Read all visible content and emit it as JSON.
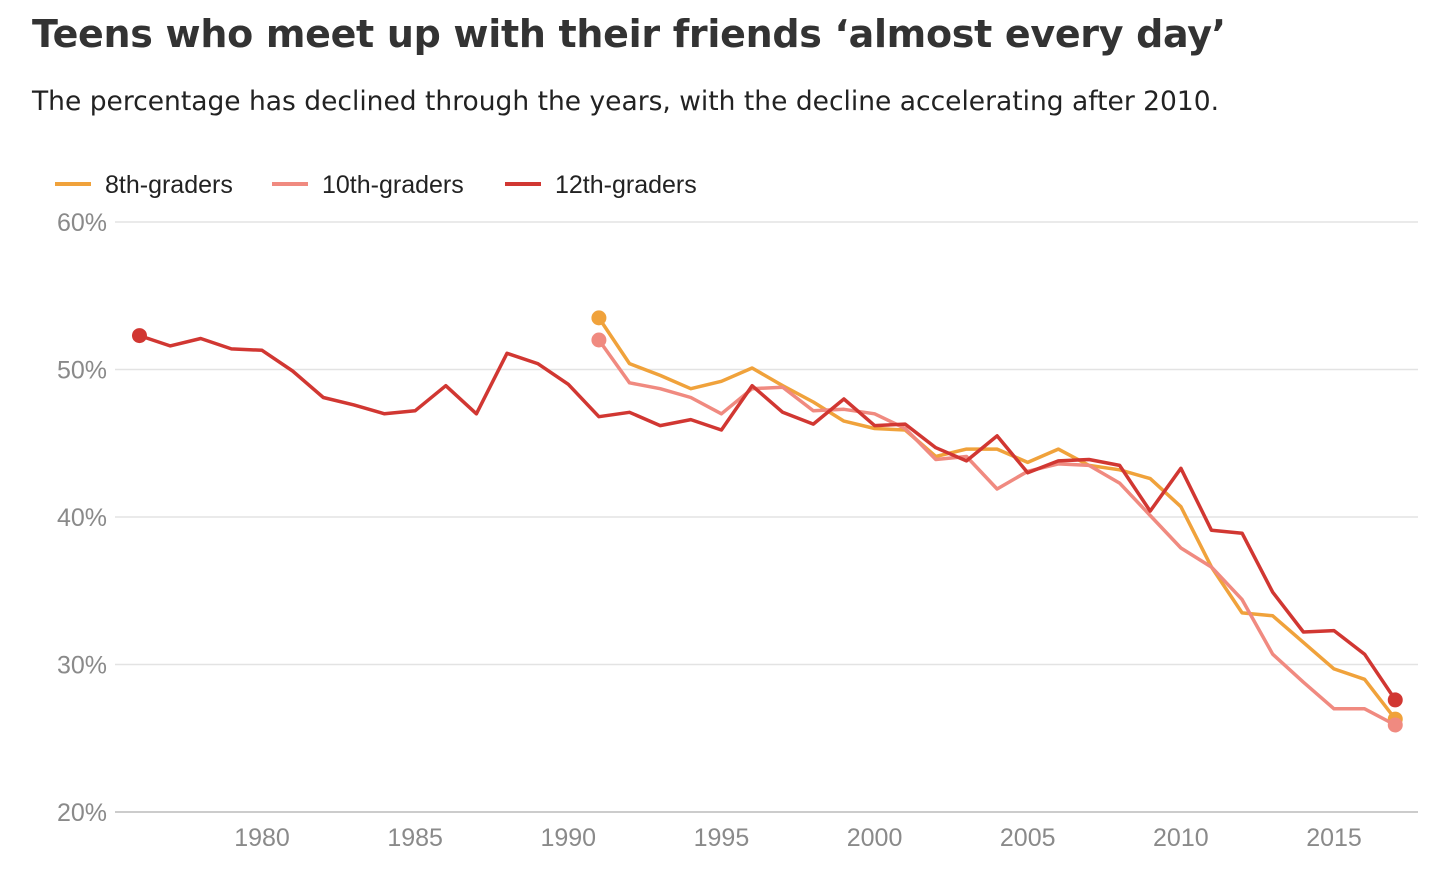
{
  "header": {
    "title": "Teens who meet up with their friends ‘almost every day’",
    "subtitle": "The percentage has declined through the years, with the decline accelerating after 2010."
  },
  "colors": {
    "grid": "#e3e3e3",
    "axis": "#cccccc"
  },
  "chart_data": {
    "type": "line",
    "title": "Teens who meet up with their friends ‘almost every day’",
    "subtitle": "The percentage has declined through the years, with the decline accelerating after 2010.",
    "xlabel": "",
    "ylabel": "",
    "xlim": [
      1976,
      2017
    ],
    "ylim": [
      20,
      60
    ],
    "yticks": [
      20,
      30,
      40,
      50,
      60
    ],
    "ytick_labels": [
      "20%",
      "30%",
      "40%",
      "50%",
      "60%"
    ],
    "xticks": [
      1980,
      1985,
      1990,
      1995,
      2000,
      2005,
      2010,
      2015
    ],
    "xtick_labels": [
      "1980",
      "1985",
      "1990",
      "1995",
      "2000",
      "2005",
      "2010",
      "2015"
    ],
    "grid": true,
    "legend_position": "top-left",
    "series": [
      {
        "name": "8th-graders",
        "color": "#f0a23b",
        "x": [
          1991,
          1992,
          1993,
          1994,
          1995,
          1996,
          1997,
          1998,
          1999,
          2000,
          2001,
          2002,
          2003,
          2004,
          2005,
          2006,
          2007,
          2008,
          2009,
          2010,
          2011,
          2012,
          2013,
          2014,
          2015,
          2016,
          2017
        ],
        "values": [
          53.5,
          50.4,
          49.6,
          48.7,
          49.2,
          50.1,
          48.9,
          47.8,
          46.5,
          46.0,
          45.9,
          44.1,
          44.6,
          44.6,
          43.7,
          44.6,
          43.5,
          43.2,
          42.6,
          40.7,
          36.6,
          33.5,
          33.3,
          31.5,
          29.7,
          29.0,
          26.3
        ]
      },
      {
        "name": "10th-graders",
        "color": "#f08a80",
        "x": [
          1991,
          1992,
          1993,
          1994,
          1995,
          1996,
          1997,
          1998,
          1999,
          2000,
          2001,
          2002,
          2003,
          2004,
          2005,
          2006,
          2007,
          2008,
          2009,
          2010,
          2011,
          2012,
          2013,
          2014,
          2015,
          2016,
          2017
        ],
        "values": [
          52.0,
          49.1,
          48.7,
          48.1,
          47.0,
          48.7,
          48.8,
          47.2,
          47.3,
          47.0,
          46.0,
          43.9,
          44.1,
          41.9,
          43.1,
          43.6,
          43.5,
          42.3,
          40.1,
          37.9,
          36.6,
          34.4,
          30.7,
          28.8,
          27.0,
          27.0,
          25.9
        ]
      },
      {
        "name": "12th-graders",
        "color": "#d13732",
        "x": [
          1976,
          1977,
          1978,
          1979,
          1980,
          1981,
          1982,
          1983,
          1984,
          1985,
          1986,
          1987,
          1988,
          1989,
          1990,
          1991,
          1992,
          1993,
          1994,
          1995,
          1996,
          1997,
          1998,
          1999,
          2000,
          2001,
          2002,
          2003,
          2004,
          2005,
          2006,
          2007,
          2008,
          2009,
          2010,
          2011,
          2012,
          2013,
          2014,
          2015,
          2016,
          2017
        ],
        "values": [
          52.3,
          51.6,
          52.1,
          51.4,
          51.3,
          49.9,
          48.1,
          47.6,
          47.0,
          47.2,
          48.9,
          47.0,
          51.1,
          50.4,
          49.0,
          46.8,
          47.1,
          46.2,
          46.6,
          45.9,
          48.9,
          47.1,
          46.3,
          48.0,
          46.2,
          46.3,
          44.7,
          43.8,
          45.5,
          43.0,
          43.8,
          43.9,
          43.5,
          40.4,
          43.3,
          39.1,
          38.9,
          34.9,
          32.2,
          32.3,
          30.7,
          27.6
        ]
      }
    ]
  }
}
